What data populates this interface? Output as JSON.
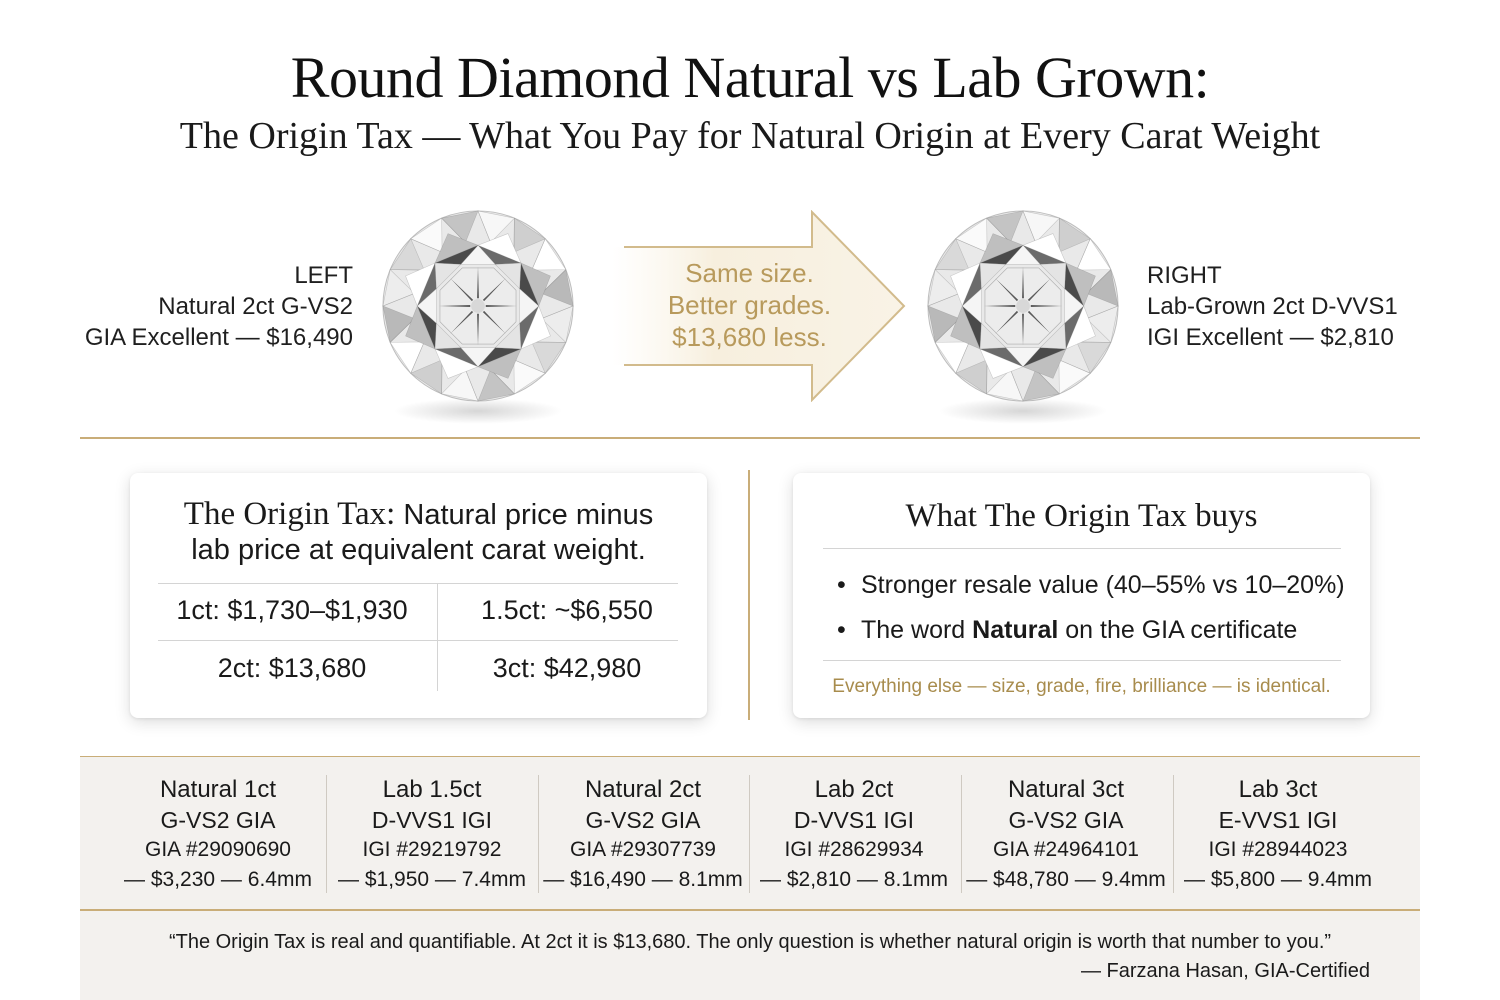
{
  "header": {
    "title": "Round Diamond Natural vs Lab Grown:",
    "subtitle": "The Origin Tax — What You Pay for Natural Origin at Every Carat Weight"
  },
  "hero": {
    "left": {
      "position": "LEFT",
      "description": "Natural 2ct G-VS2",
      "grading": "GIA Excellent — $16,490"
    },
    "right": {
      "position": "RIGHT",
      "description": "Lab-Grown 2ct D-VVS1",
      "grading": "IGI Excellent — $2,810"
    },
    "arrow": {
      "line1": "Same size.",
      "line2": "Better grades.",
      "line3": "$13,680 less."
    }
  },
  "origin_tax_card": {
    "heading_lead": "The Origin Tax:",
    "heading_rest": "Natural price minus",
    "heading_line2": "lab price at equivalent carat weight.",
    "values": [
      "1ct: $1,730–$1,930",
      "1.5ct: ~$6,550",
      "2ct: $13,680",
      "3ct: $42,980"
    ]
  },
  "buys_card": {
    "title": "What The Origin Tax buys",
    "bullet1": "Stronger resale value (40–55% vs 10–20%)",
    "bullet2_pre": "The word ",
    "bullet2_bold": "Natural",
    "bullet2_post": " on the GIA certificate",
    "note": "Everything else — size, grade, fire, brilliance — is identical."
  },
  "specs": [
    {
      "name": "Natural 1ct",
      "grade": "G-VS2 GIA",
      "cert": "GIA #29090690",
      "price": "— $3,230 — 6.4mm"
    },
    {
      "name": "Lab 1.5ct",
      "grade": "D-VVS1 IGI",
      "cert": "IGI #29219792",
      "price": "— $1,950 — 7.4mm"
    },
    {
      "name": "Natural 2ct",
      "grade": "G-VS2 GIA",
      "cert": "GIA #29307739",
      "price": "— $16,490 — 8.1mm"
    },
    {
      "name": "Lab 2ct",
      "grade": "D-VVS1 IGI",
      "cert": "IGI #28629934",
      "price": "— $2,810 — 8.1mm"
    },
    {
      "name": "Natural 3ct",
      "grade": "G-VS2 GIA",
      "cert": "GIA #24964101",
      "price": "— $48,780 — 9.4mm"
    },
    {
      "name": "Lab 3ct",
      "grade": "E-VVS1 IGI",
      "cert": "IGI #28944023",
      "price": "— $5,800 — 9.4mm"
    }
  ],
  "quote": {
    "text": "“The Origin Tax is real and quantifiable. At 2ct it is $13,680. The only question is whether natural origin is worth that number to you.”",
    "attribution": "— Farzana Hasan, GIA-Certified"
  },
  "colors": {
    "gold": "#c9ad78",
    "gold_text": "#b89a5c",
    "band": "#f3f1ee"
  },
  "icons": {
    "diamond": "round-diamond-icon",
    "arrow": "right-arrow-icon"
  }
}
